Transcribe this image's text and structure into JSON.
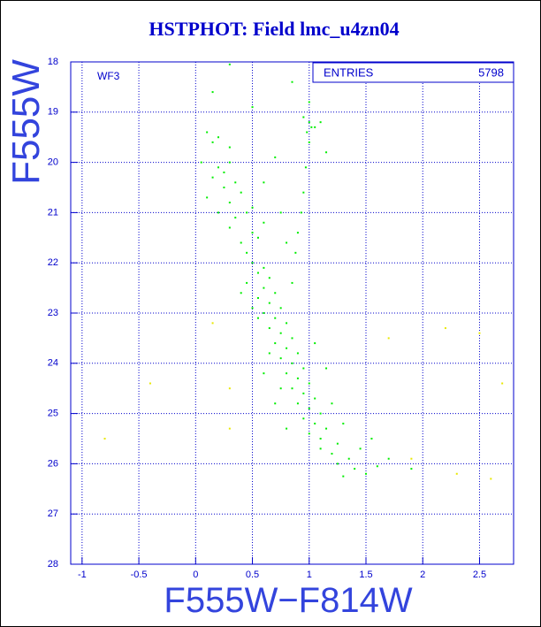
{
  "chart_data": {
    "type": "scatter",
    "title": "HSTPHOT: Field lmc_u4zn04",
    "xlabel": "F555W−F814W",
    "ylabel": "F555W",
    "annotation": "WF3",
    "stats": {
      "label": "ENTRIES",
      "value": 5798
    },
    "xlim": [
      -1.1,
      2.8
    ],
    "ylim": [
      28,
      18
    ],
    "xticks": [
      -1,
      -0.5,
      0,
      0.5,
      1,
      1.5,
      2,
      2.5
    ],
    "yticks": [
      18,
      19,
      20,
      21,
      22,
      23,
      24,
      25,
      26,
      27,
      28
    ],
    "grid": true,
    "series": [
      {
        "color": "#00ee00",
        "x": [
          0.1,
          0.15,
          0.2,
          0.3,
          0.05,
          0.2,
          0.3,
          0.15,
          0.25,
          0.35,
          0.1,
          0.3,
          0.4,
          0.2,
          0.35,
          0.45,
          0.3,
          0.5,
          0.4,
          0.55,
          0.45,
          0.6,
          0.25,
          0.5,
          1.0,
          1.02,
          0.98,
          1.05,
          1.1,
          0.95,
          1.0,
          0.97,
          0.95,
          0.93,
          0.9,
          0.88,
          1.0,
          0.85,
          1.15,
          0.7,
          0.6,
          0.75,
          0.8,
          0.3,
          0.15,
          0.5,
          0.5,
          0.55,
          0.6,
          0.65,
          0.45,
          0.6,
          0.7,
          0.55,
          0.65,
          0.75,
          0.6,
          0.7,
          0.8,
          0.65,
          0.75,
          0.85,
          0.7,
          0.8,
          0.9,
          0.75,
          0.85,
          0.95,
          0.8,
          0.9,
          1.0,
          0.85,
          0.95,
          1.05,
          0.9,
          1.0,
          1.1,
          0.95,
          1.05,
          1.15,
          1.0,
          1.1,
          1.25,
          1.1,
          1.2,
          1.35,
          1.25,
          1.4,
          1.5,
          1.6,
          1.3,
          1.45,
          1.7,
          1.55,
          1.3,
          1.2,
          0.75,
          0.65,
          0.55,
          0.4,
          0.85,
          1.05,
          0.7,
          0.8,
          1.9,
          0.6,
          1.15,
          0.5
        ],
        "values": [
          19.4,
          19.6,
          19.5,
          19.7,
          20.0,
          20.1,
          20.0,
          20.3,
          20.5,
          20.4,
          20.7,
          20.8,
          20.6,
          21.0,
          21.1,
          21.0,
          21.3,
          21.4,
          21.6,
          21.5,
          21.8,
          21.2,
          20.2,
          20.9,
          19.2,
          19.3,
          19.4,
          19.3,
          19.2,
          19.1,
          19.6,
          20.1,
          20.6,
          21.0,
          21.4,
          21.8,
          18.8,
          18.4,
          19.8,
          19.9,
          20.4,
          21.0,
          21.6,
          18.05,
          18.6,
          18.9,
          22.0,
          22.2,
          22.1,
          22.3,
          22.4,
          22.5,
          22.6,
          22.7,
          22.8,
          22.9,
          23.0,
          23.1,
          23.2,
          23.3,
          23.4,
          23.5,
          23.6,
          23.7,
          23.8,
          23.9,
          24.0,
          24.1,
          24.2,
          24.3,
          24.4,
          24.5,
          24.6,
          24.7,
          24.8,
          24.9,
          25.0,
          25.1,
          25.2,
          25.3,
          25.4,
          25.5,
          25.6,
          25.7,
          25.8,
          25.9,
          26.0,
          26.1,
          26.2,
          26.05,
          26.25,
          25.7,
          25.9,
          25.5,
          25.2,
          24.8,
          24.5,
          23.8,
          23.1,
          22.6,
          22.4,
          23.6,
          24.8,
          25.3,
          26.1,
          24.2,
          24.1,
          22.9
        ]
      },
      {
        "color": "#e8e800",
        "x": [
          2.2,
          2.5,
          1.7,
          0.3,
          -0.4,
          -0.8,
          2.3,
          2.7,
          1.9,
          0.15,
          0.3,
          2.6
        ],
        "values": [
          23.3,
          23.4,
          23.5,
          24.5,
          24.4,
          25.5,
          26.2,
          24.4,
          25.9,
          23.2,
          25.3,
          26.3
        ]
      }
    ]
  }
}
